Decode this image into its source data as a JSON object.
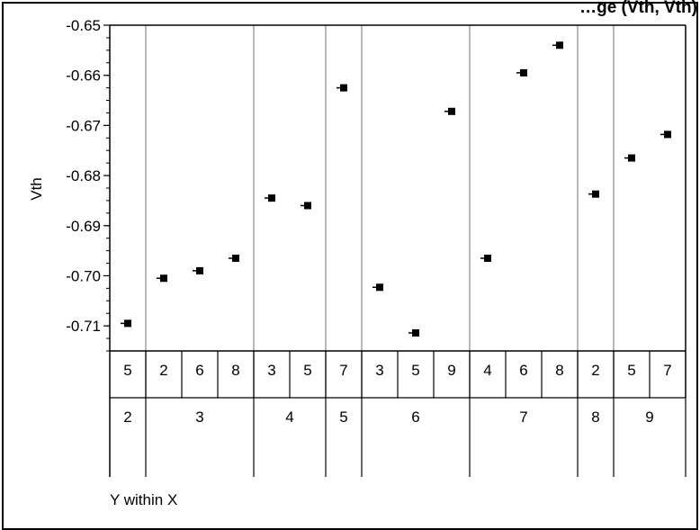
{
  "chart_data": {
    "type": "scatter",
    "title": "…ge (Vth, Vth)",
    "ylabel": "Vth",
    "xlabel": "Y within X",
    "ylim": [
      -0.715,
      -0.65
    ],
    "yticks": [
      "-0.65",
      "-0.66",
      "-0.67",
      "-0.68",
      "-0.69",
      "-0.70",
      "-0.71"
    ],
    "grid": false,
    "points": [
      {
        "x_outer": "2",
        "x_inner": "5",
        "y": -0.7095
      },
      {
        "x_outer": "3",
        "x_inner": "2",
        "y": -0.7005
      },
      {
        "x_outer": "3",
        "x_inner": "6",
        "y": -0.699
      },
      {
        "x_outer": "3",
        "x_inner": "8",
        "y": -0.6965
      },
      {
        "x_outer": "4",
        "x_inner": "3",
        "y": -0.6845
      },
      {
        "x_outer": "4",
        "x_inner": "5",
        "y": -0.686
      },
      {
        "x_outer": "5",
        "x_inner": "7",
        "y": -0.6625
      },
      {
        "x_outer": "6",
        "x_inner": "3",
        "y": -0.7023
      },
      {
        "x_outer": "6",
        "x_inner": "5",
        "y": -0.7114
      },
      {
        "x_outer": "6",
        "x_inner": "9",
        "y": -0.6672
      },
      {
        "x_outer": "7",
        "x_inner": "4",
        "y": -0.6965
      },
      {
        "x_outer": "7",
        "x_inner": "6",
        "y": -0.6595
      },
      {
        "x_outer": "7",
        "x_inner": "8",
        "y": -0.654
      },
      {
        "x_outer": "8",
        "x_inner": "2",
        "y": -0.6837
      },
      {
        "x_outer": "9",
        "x_inner": "5",
        "y": -0.6765
      },
      {
        "x_outer": "9",
        "x_inner": "7",
        "y": -0.6718
      }
    ],
    "groups": [
      {
        "label": "2",
        "inner": [
          "5"
        ]
      },
      {
        "label": "3",
        "inner": [
          "2",
          "6",
          "8"
        ]
      },
      {
        "label": "4",
        "inner": [
          "3",
          "5"
        ]
      },
      {
        "label": "5",
        "inner": [
          "7"
        ]
      },
      {
        "label": "6",
        "inner": [
          "3",
          "5",
          "9"
        ]
      },
      {
        "label": "7",
        "inner": [
          "4",
          "6",
          "8"
        ]
      },
      {
        "label": "8",
        "inner": [
          "2"
        ]
      },
      {
        "label": "9",
        "inner": [
          "5",
          "7"
        ]
      }
    ]
  }
}
